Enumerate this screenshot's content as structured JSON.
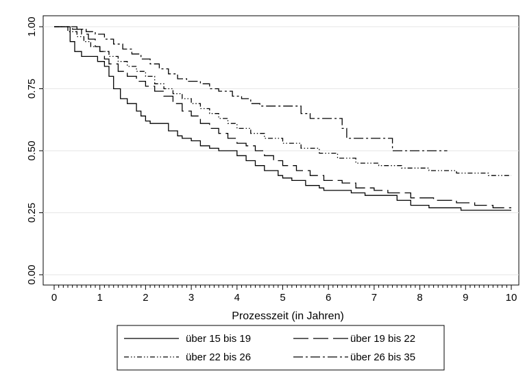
{
  "chart_data": {
    "type": "line",
    "subtype": "step (Kaplan-Meier survival curves)",
    "title": "",
    "xlabel": "Prozesszeit (in Jahren)",
    "ylabel": "",
    "xlim": [
      0,
      10
    ],
    "ylim": [
      0,
      1
    ],
    "x_ticks": [
      "0",
      "1",
      "2",
      "3",
      "4",
      "5",
      "6",
      "7",
      "8",
      "9",
      "10"
    ],
    "y_ticks": [
      "0.00",
      "0.25",
      "0.50",
      "0.75",
      "1.00"
    ],
    "grid": "horizontal",
    "legend_position": "bottom",
    "series": [
      {
        "name": "über 15 bis 19",
        "style": "solid",
        "points": [
          [
            0,
            1.0
          ],
          [
            0.35,
            1.0
          ],
          [
            0.35,
            0.94
          ],
          [
            0.45,
            0.94
          ],
          [
            0.45,
            0.9
          ],
          [
            0.6,
            0.9
          ],
          [
            0.6,
            0.88
          ],
          [
            0.95,
            0.88
          ],
          [
            0.95,
            0.86
          ],
          [
            1.1,
            0.86
          ],
          [
            1.1,
            0.84
          ],
          [
            1.2,
            0.84
          ],
          [
            1.2,
            0.8
          ],
          [
            1.3,
            0.8
          ],
          [
            1.3,
            0.75
          ],
          [
            1.45,
            0.75
          ],
          [
            1.45,
            0.71
          ],
          [
            1.6,
            0.71
          ],
          [
            1.6,
            0.69
          ],
          [
            1.8,
            0.69
          ],
          [
            1.8,
            0.66
          ],
          [
            1.9,
            0.66
          ],
          [
            1.9,
            0.64
          ],
          [
            2.0,
            0.64
          ],
          [
            2.0,
            0.62
          ],
          [
            2.1,
            0.62
          ],
          [
            2.1,
            0.61
          ],
          [
            2.5,
            0.61
          ],
          [
            2.5,
            0.58
          ],
          [
            2.7,
            0.58
          ],
          [
            2.7,
            0.56
          ],
          [
            2.8,
            0.56
          ],
          [
            2.8,
            0.55
          ],
          [
            3.0,
            0.55
          ],
          [
            3.0,
            0.54
          ],
          [
            3.2,
            0.54
          ],
          [
            3.2,
            0.52
          ],
          [
            3.4,
            0.52
          ],
          [
            3.4,
            0.51
          ],
          [
            3.6,
            0.51
          ],
          [
            3.6,
            0.5
          ],
          [
            4.0,
            0.5
          ],
          [
            4.0,
            0.48
          ],
          [
            4.2,
            0.48
          ],
          [
            4.2,
            0.46
          ],
          [
            4.4,
            0.46
          ],
          [
            4.4,
            0.44
          ],
          [
            4.6,
            0.44
          ],
          [
            4.6,
            0.42
          ],
          [
            4.9,
            0.42
          ],
          [
            4.9,
            0.4
          ],
          [
            5.0,
            0.4
          ],
          [
            5.0,
            0.39
          ],
          [
            5.2,
            0.39
          ],
          [
            5.2,
            0.38
          ],
          [
            5.5,
            0.38
          ],
          [
            5.5,
            0.36
          ],
          [
            5.8,
            0.36
          ],
          [
            5.8,
            0.35
          ],
          [
            5.9,
            0.35
          ],
          [
            5.9,
            0.34
          ],
          [
            6.5,
            0.34
          ],
          [
            6.5,
            0.33
          ],
          [
            6.8,
            0.33
          ],
          [
            6.8,
            0.32
          ],
          [
            7.5,
            0.32
          ],
          [
            7.5,
            0.3
          ],
          [
            7.8,
            0.3
          ],
          [
            7.8,
            0.28
          ],
          [
            8.2,
            0.28
          ],
          [
            8.2,
            0.27
          ],
          [
            8.9,
            0.27
          ],
          [
            8.9,
            0.26
          ],
          [
            10.0,
            0.26
          ]
        ]
      },
      {
        "name": "über 19 bis 22",
        "style": "dashed",
        "points": [
          [
            0,
            1.0
          ],
          [
            0.4,
            1.0
          ],
          [
            0.4,
            0.99
          ],
          [
            0.6,
            0.99
          ],
          [
            0.6,
            0.97
          ],
          [
            0.75,
            0.97
          ],
          [
            0.75,
            0.95
          ],
          [
            0.9,
            0.95
          ],
          [
            0.9,
            0.92
          ],
          [
            1.0,
            0.92
          ],
          [
            1.0,
            0.9
          ],
          [
            1.1,
            0.9
          ],
          [
            1.1,
            0.87
          ],
          [
            1.2,
            0.87
          ],
          [
            1.2,
            0.85
          ],
          [
            1.4,
            0.85
          ],
          [
            1.4,
            0.82
          ],
          [
            1.6,
            0.82
          ],
          [
            1.6,
            0.8
          ],
          [
            1.8,
            0.8
          ],
          [
            1.8,
            0.78
          ],
          [
            2.0,
            0.78
          ],
          [
            2.0,
            0.76
          ],
          [
            2.2,
            0.76
          ],
          [
            2.2,
            0.74
          ],
          [
            2.4,
            0.74
          ],
          [
            2.4,
            0.72
          ],
          [
            2.6,
            0.72
          ],
          [
            2.6,
            0.69
          ],
          [
            2.8,
            0.69
          ],
          [
            2.8,
            0.66
          ],
          [
            3.0,
            0.66
          ],
          [
            3.0,
            0.64
          ],
          [
            3.2,
            0.64
          ],
          [
            3.2,
            0.61
          ],
          [
            3.4,
            0.61
          ],
          [
            3.4,
            0.59
          ],
          [
            3.6,
            0.59
          ],
          [
            3.6,
            0.57
          ],
          [
            3.8,
            0.57
          ],
          [
            3.8,
            0.55
          ],
          [
            4.0,
            0.55
          ],
          [
            4.0,
            0.53
          ],
          [
            4.2,
            0.53
          ],
          [
            4.2,
            0.52
          ],
          [
            4.4,
            0.52
          ],
          [
            4.4,
            0.5
          ],
          [
            4.6,
            0.5
          ],
          [
            4.6,
            0.48
          ],
          [
            4.8,
            0.48
          ],
          [
            4.8,
            0.46
          ],
          [
            5.0,
            0.46
          ],
          [
            5.0,
            0.44
          ],
          [
            5.3,
            0.44
          ],
          [
            5.3,
            0.42
          ],
          [
            5.6,
            0.42
          ],
          [
            5.6,
            0.4
          ],
          [
            5.9,
            0.4
          ],
          [
            5.9,
            0.38
          ],
          [
            6.3,
            0.38
          ],
          [
            6.3,
            0.37
          ],
          [
            6.6,
            0.37
          ],
          [
            6.6,
            0.35
          ],
          [
            7.0,
            0.35
          ],
          [
            7.0,
            0.34
          ],
          [
            7.3,
            0.34
          ],
          [
            7.3,
            0.33
          ],
          [
            7.8,
            0.33
          ],
          [
            7.8,
            0.31
          ],
          [
            8.3,
            0.31
          ],
          [
            8.3,
            0.3
          ],
          [
            8.8,
            0.3
          ],
          [
            8.8,
            0.29
          ],
          [
            9.2,
            0.29
          ],
          [
            9.2,
            0.28
          ],
          [
            9.6,
            0.28
          ],
          [
            9.6,
            0.27
          ],
          [
            10.0,
            0.27
          ]
        ]
      },
      {
        "name": "über 22 bis 26",
        "style": "dash-dot-dot",
        "points": [
          [
            0,
            1.0
          ],
          [
            0.3,
            1.0
          ],
          [
            0.3,
            0.98
          ],
          [
            0.5,
            0.98
          ],
          [
            0.5,
            0.96
          ],
          [
            0.65,
            0.96
          ],
          [
            0.65,
            0.94
          ],
          [
            0.8,
            0.94
          ],
          [
            0.8,
            0.92
          ],
          [
            1.0,
            0.92
          ],
          [
            1.0,
            0.9
          ],
          [
            1.2,
            0.9
          ],
          [
            1.2,
            0.88
          ],
          [
            1.4,
            0.88
          ],
          [
            1.4,
            0.86
          ],
          [
            1.6,
            0.86
          ],
          [
            1.6,
            0.84
          ],
          [
            1.8,
            0.84
          ],
          [
            1.8,
            0.82
          ],
          [
            2.0,
            0.82
          ],
          [
            2.0,
            0.8
          ],
          [
            2.2,
            0.8
          ],
          [
            2.2,
            0.77
          ],
          [
            2.4,
            0.77
          ],
          [
            2.4,
            0.75
          ],
          [
            2.6,
            0.75
          ],
          [
            2.6,
            0.73
          ],
          [
            2.8,
            0.73
          ],
          [
            2.8,
            0.71
          ],
          [
            3.0,
            0.71
          ],
          [
            3.0,
            0.69
          ],
          [
            3.2,
            0.69
          ],
          [
            3.2,
            0.67
          ],
          [
            3.4,
            0.67
          ],
          [
            3.4,
            0.65
          ],
          [
            3.6,
            0.65
          ],
          [
            3.6,
            0.63
          ],
          [
            3.8,
            0.63
          ],
          [
            3.8,
            0.61
          ],
          [
            4.0,
            0.61
          ],
          [
            4.0,
            0.59
          ],
          [
            4.3,
            0.59
          ],
          [
            4.3,
            0.57
          ],
          [
            4.6,
            0.57
          ],
          [
            4.6,
            0.55
          ],
          [
            5.0,
            0.55
          ],
          [
            5.0,
            0.53
          ],
          [
            5.4,
            0.53
          ],
          [
            5.4,
            0.51
          ],
          [
            5.8,
            0.51
          ],
          [
            5.8,
            0.49
          ],
          [
            6.2,
            0.49
          ],
          [
            6.2,
            0.47
          ],
          [
            6.6,
            0.47
          ],
          [
            6.6,
            0.45
          ],
          [
            7.1,
            0.45
          ],
          [
            7.1,
            0.44
          ],
          [
            7.6,
            0.44
          ],
          [
            7.6,
            0.43
          ],
          [
            8.2,
            0.43
          ],
          [
            8.2,
            0.42
          ],
          [
            8.8,
            0.42
          ],
          [
            8.8,
            0.41
          ],
          [
            9.5,
            0.41
          ],
          [
            9.5,
            0.4
          ],
          [
            10.0,
            0.4
          ]
        ]
      },
      {
        "name": "über 26 bis 35",
        "style": "dash-dot",
        "points": [
          [
            0,
            1.0
          ],
          [
            0.5,
            1.0
          ],
          [
            0.5,
            0.99
          ],
          [
            0.7,
            0.99
          ],
          [
            0.7,
            0.98
          ],
          [
            0.9,
            0.98
          ],
          [
            0.9,
            0.97
          ],
          [
            1.1,
            0.97
          ],
          [
            1.1,
            0.95
          ],
          [
            1.3,
            0.95
          ],
          [
            1.3,
            0.93
          ],
          [
            1.5,
            0.93
          ],
          [
            1.5,
            0.91
          ],
          [
            1.7,
            0.91
          ],
          [
            1.7,
            0.89
          ],
          [
            1.9,
            0.89
          ],
          [
            1.9,
            0.87
          ],
          [
            2.1,
            0.87
          ],
          [
            2.1,
            0.85
          ],
          [
            2.3,
            0.85
          ],
          [
            2.3,
            0.83
          ],
          [
            2.5,
            0.83
          ],
          [
            2.5,
            0.81
          ],
          [
            2.7,
            0.81
          ],
          [
            2.7,
            0.79
          ],
          [
            2.9,
            0.79
          ],
          [
            2.9,
            0.78
          ],
          [
            3.2,
            0.78
          ],
          [
            3.2,
            0.77
          ],
          [
            3.4,
            0.77
          ],
          [
            3.4,
            0.75
          ],
          [
            3.6,
            0.75
          ],
          [
            3.6,
            0.74
          ],
          [
            3.9,
            0.74
          ],
          [
            3.9,
            0.72
          ],
          [
            4.1,
            0.72
          ],
          [
            4.1,
            0.71
          ],
          [
            4.3,
            0.71
          ],
          [
            4.3,
            0.69
          ],
          [
            4.5,
            0.69
          ],
          [
            4.5,
            0.68
          ],
          [
            5.4,
            0.68
          ],
          [
            5.4,
            0.65
          ],
          [
            5.6,
            0.65
          ],
          [
            5.6,
            0.63
          ],
          [
            6.3,
            0.63
          ],
          [
            6.3,
            0.59
          ],
          [
            6.4,
            0.59
          ],
          [
            6.4,
            0.55
          ],
          [
            7.4,
            0.55
          ],
          [
            7.4,
            0.5
          ],
          [
            8.6,
            0.5
          ]
        ]
      }
    ]
  },
  "legend": {
    "items": [
      {
        "label": "über 15 bis 19",
        "style": "solid"
      },
      {
        "label": "über 19 bis 22",
        "style": "dashed"
      },
      {
        "label": "über 22 bis 26",
        "style": "dash-dot-dot"
      },
      {
        "label": "über 26 bis 35",
        "style": "dash-dot"
      }
    ]
  }
}
